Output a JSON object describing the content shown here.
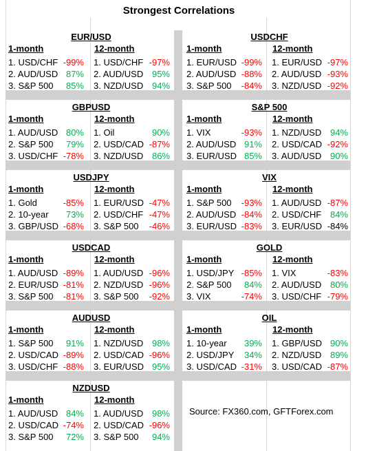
{
  "title": "Strongest Correlations",
  "column_headers": {
    "one_month": "1-month",
    "twelve_month": "12-month"
  },
  "colors": {
    "negative": "#ff0000",
    "positive": "#00b050",
    "neutral": "#000000",
    "separator": "#d0d0d0"
  },
  "panels": [
    {
      "name": "EUR/USD",
      "one_month": [
        {
          "label": "1. USD/CHF",
          "value": "-99%",
          "tone": "neg"
        },
        {
          "label": "2. AUD/USD",
          "value": "87%",
          "tone": "pos"
        },
        {
          "label": "3. S&P 500",
          "value": "85%",
          "tone": "pos"
        }
      ],
      "twelve_month": [
        {
          "label": "1. USD/CHF",
          "value": "-97%",
          "tone": "neg"
        },
        {
          "label": "2. AUD/USD",
          "value": "95%",
          "tone": "pos"
        },
        {
          "label": "3. NZD/USD",
          "value": "94%",
          "tone": "pos"
        }
      ]
    },
    {
      "name": "USDCHF",
      "one_month": [
        {
          "label": "1. EUR/USD",
          "value": "-99%",
          "tone": "neg"
        },
        {
          "label": "2. AUD/USD",
          "value": "-88%",
          "tone": "neg"
        },
        {
          "label": "3. S&P 500",
          "value": "-84%",
          "tone": "neg"
        }
      ],
      "twelve_month": [
        {
          "label": "1. EUR/USD",
          "value": "-97%",
          "tone": "neg"
        },
        {
          "label": "2. AUD/USD",
          "value": "-93%",
          "tone": "neg"
        },
        {
          "label": "3. NZD/USD",
          "value": "-92%",
          "tone": "neg"
        }
      ]
    },
    {
      "name": "GBPUSD",
      "one_month": [
        {
          "label": "1. AUD/USD",
          "value": "80%",
          "tone": "pos"
        },
        {
          "label": "2. S&P 500",
          "value": "79%",
          "tone": "pos"
        },
        {
          "label": "3. USD/CHF",
          "value": "-78%",
          "tone": "neg"
        }
      ],
      "twelve_month": [
        {
          "label": "1. Oil",
          "value": "90%",
          "tone": "pos"
        },
        {
          "label": "2. USD/CAD",
          "value": "-87%",
          "tone": "neg"
        },
        {
          "label": "3. NZD/USD",
          "value": "86%",
          "tone": "pos"
        }
      ]
    },
    {
      "name": "S&P 500",
      "one_month": [
        {
          "label": "1. VIX",
          "value": "-93%",
          "tone": "neg"
        },
        {
          "label": "2. AUD/USD",
          "value": "91%",
          "tone": "pos"
        },
        {
          "label": "3. EUR/USD",
          "value": "85%",
          "tone": "pos"
        }
      ],
      "twelve_month": [
        {
          "label": "1. NZD/USD",
          "value": "94%",
          "tone": "pos"
        },
        {
          "label": "2. USD/CAD",
          "value": "-92%",
          "tone": "neg"
        },
        {
          "label": "3. AUD/USD",
          "value": "90%",
          "tone": "pos"
        }
      ]
    },
    {
      "name": "USDJPY",
      "one_month": [
        {
          "label": "1. Gold",
          "value": "-85%",
          "tone": "neg"
        },
        {
          "label": "2. 10-year",
          "value": "73%",
          "tone": "pos"
        },
        {
          "label": "3. GBP/USD",
          "value": "-68%",
          "tone": "neg"
        }
      ],
      "twelve_month": [
        {
          "label": "1. EUR/USD",
          "value": "-47%",
          "tone": "neg"
        },
        {
          "label": "2. USD/CHF",
          "value": "-47%",
          "tone": "neg"
        },
        {
          "label": "3. S&P 500",
          "value": "-46%",
          "tone": "neg"
        }
      ]
    },
    {
      "name": "VIX",
      "one_month": [
        {
          "label": "1. S&P 500",
          "value": "-93%",
          "tone": "neg"
        },
        {
          "label": "2. AUD/USD",
          "value": "-84%",
          "tone": "neg"
        },
        {
          "label": "3. EUR/USD",
          "value": "-83%",
          "tone": "neg"
        }
      ],
      "twelve_month": [
        {
          "label": "1. AUD/USD",
          "value": "-87%",
          "tone": "neg"
        },
        {
          "label": "2. USD/CHF",
          "value": "84%",
          "tone": "pos"
        },
        {
          "label": "3. EUR/USD",
          "value": "-84%",
          "tone": "blk"
        }
      ]
    },
    {
      "name": "USDCAD",
      "one_month": [
        {
          "label": "1. AUD/USD",
          "value": "-89%",
          "tone": "neg"
        },
        {
          "label": "2. EUR/USD",
          "value": "-81%",
          "tone": "neg"
        },
        {
          "label": "3. S&P 500",
          "value": "-81%",
          "tone": "neg"
        }
      ],
      "twelve_month": [
        {
          "label": "1. AUD/USD",
          "value": "-96%",
          "tone": "neg"
        },
        {
          "label": "2. NZD/USD",
          "value": "-96%",
          "tone": "neg"
        },
        {
          "label": "3. S&P 500",
          "value": "-92%",
          "tone": "neg"
        }
      ]
    },
    {
      "name": "GOLD",
      "one_month": [
        {
          "label": "1. USD/JPY",
          "value": "-85%",
          "tone": "neg"
        },
        {
          "label": "2. S&P 500",
          "value": "84%",
          "tone": "pos"
        },
        {
          "label": "3. VIX",
          "value": "-74%",
          "tone": "neg"
        }
      ],
      "twelve_month": [
        {
          "label": "1. VIX",
          "value": "-83%",
          "tone": "neg"
        },
        {
          "label": "2. AUD/USD",
          "value": "80%",
          "tone": "pos"
        },
        {
          "label": "3. USD/CHF",
          "value": "-79%",
          "tone": "neg"
        }
      ]
    },
    {
      "name": "AUDUSD",
      "one_month": [
        {
          "label": "1. S&P 500",
          "value": "91%",
          "tone": "pos"
        },
        {
          "label": "2. USD/CAD",
          "value": "-89%",
          "tone": "neg"
        },
        {
          "label": "3. USD/CHF",
          "value": "-88%",
          "tone": "neg"
        }
      ],
      "twelve_month": [
        {
          "label": "1. NZD/USD",
          "value": "98%",
          "tone": "pos"
        },
        {
          "label": "2. USD/CAD",
          "value": "-96%",
          "tone": "neg"
        },
        {
          "label": "3. EUR/USD",
          "value": "95%",
          "tone": "pos"
        }
      ]
    },
    {
      "name": "OIL",
      "one_month": [
        {
          "label": "1. 10-year",
          "value": "39%",
          "tone": "pos"
        },
        {
          "label": "2. USD/JPY",
          "value": "34%",
          "tone": "pos"
        },
        {
          "label": "3. USD/CAD",
          "value": "-31%",
          "tone": "neg"
        }
      ],
      "twelve_month": [
        {
          "label": "1. GBP/USD",
          "value": "90%",
          "tone": "pos"
        },
        {
          "label": "2. NZD/USD",
          "value": "89%",
          "tone": "pos"
        },
        {
          "label": "3. USD/CAD",
          "value": "-87%",
          "tone": "neg"
        }
      ]
    },
    {
      "name": "NZDUSD",
      "one_month": [
        {
          "label": "1. AUD/USD",
          "value": "84%",
          "tone": "pos"
        },
        {
          "label": "2. USD/CAD",
          "value": "-74%",
          "tone": "neg"
        },
        {
          "label": "3. S&P 500",
          "value": "72%",
          "tone": "pos"
        }
      ],
      "twelve_month": [
        {
          "label": "1. AUD/USD",
          "value": "98%",
          "tone": "pos"
        },
        {
          "label": "2. USD/CAD",
          "value": "-96%",
          "tone": "neg"
        },
        {
          "label": "3. S&P 500",
          "value": "94%",
          "tone": "pos"
        }
      ]
    }
  ],
  "source": "Source: FX360.com, GFTForex.com"
}
